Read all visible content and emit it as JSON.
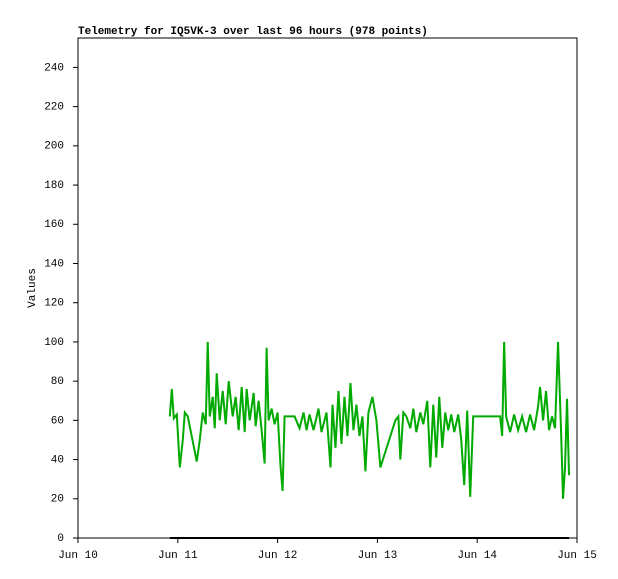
{
  "chart_data": {
    "type": "line",
    "title": "Telemetry for IQ5VK-3 over last 96 hours (978 points)",
    "y_label": "Values",
    "xlim": [
      0,
      5
    ],
    "xticks": [
      {
        "value": 0,
        "label": "Jun 10"
      },
      {
        "value": 1,
        "label": "Jun 11"
      },
      {
        "value": 2,
        "label": "Jun 12"
      },
      {
        "value": 3,
        "label": "Jun 13"
      },
      {
        "value": 4,
        "label": "Jun 14"
      },
      {
        "value": 5,
        "label": "Jun 15"
      }
    ],
    "ylim": [
      0,
      255
    ],
    "yticks": [
      0,
      20,
      40,
      60,
      80,
      100,
      120,
      140,
      160,
      180,
      200,
      220,
      240
    ],
    "grid": false,
    "series": [
      {
        "color": "#00aa00",
        "x": [
          0.92,
          0.94,
          0.96,
          0.99,
          1.02,
          1.05,
          1.07,
          1.1,
          1.19,
          1.22,
          1.25,
          1.28,
          1.3,
          1.32,
          1.35,
          1.37,
          1.39,
          1.42,
          1.45,
          1.48,
          1.51,
          1.55,
          1.58,
          1.61,
          1.64,
          1.67,
          1.69,
          1.72,
          1.76,
          1.78,
          1.81,
          1.84,
          1.87,
          1.89,
          1.91,
          1.94,
          1.97,
          2.0,
          2.03,
          2.05,
          2.07,
          2.17,
          2.22,
          2.26,
          2.29,
          2.32,
          2.36,
          2.41,
          2.44,
          2.49,
          2.53,
          2.55,
          2.58,
          2.61,
          2.64,
          2.67,
          2.7,
          2.73,
          2.76,
          2.79,
          2.82,
          2.85,
          2.88,
          2.91,
          2.95,
          2.99,
          3.03,
          3.18,
          3.21,
          3.23,
          3.26,
          3.29,
          3.33,
          3.36,
          3.39,
          3.43,
          3.46,
          3.5,
          3.53,
          3.56,
          3.59,
          3.62,
          3.65,
          3.68,
          3.71,
          3.74,
          3.77,
          3.81,
          3.84,
          3.87,
          3.9,
          3.93,
          3.96,
          4.23,
          4.25,
          4.27,
          4.29,
          4.33,
          4.37,
          4.41,
          4.45,
          4.49,
          4.53,
          4.57,
          4.61,
          4.63,
          4.66,
          4.69,
          4.72,
          4.75,
          4.78,
          4.81,
          4.84,
          4.86,
          4.88,
          4.9,
          4.92
        ],
        "values": [
          62,
          76,
          61,
          63,
          36,
          50,
          64,
          62,
          39,
          50,
          64,
          58,
          100,
          62,
          72,
          56,
          84,
          60,
          75,
          58,
          80,
          62,
          72,
          55,
          77,
          54,
          76,
          60,
          74,
          57,
          70,
          55,
          38,
          97,
          60,
          66,
          58,
          64,
          36,
          24,
          62,
          62,
          56,
          64,
          55,
          63,
          55,
          66,
          54,
          64,
          36,
          68,
          46,
          75,
          48,
          72,
          52,
          79,
          55,
          68,
          52,
          62,
          34,
          64,
          72,
          60,
          36,
          60,
          62,
          40,
          64,
          62,
          56,
          66,
          54,
          64,
          58,
          70,
          36,
          68,
          41,
          72,
          46,
          64,
          55,
          63,
          54,
          63,
          50,
          27,
          65,
          21,
          62,
          62,
          52,
          100,
          62,
          54,
          63,
          55,
          62,
          54,
          63,
          55,
          67,
          77,
          60,
          75,
          55,
          62,
          56,
          100,
          55,
          20,
          36,
          71,
          32
        ]
      },
      {
        "color": "#000000",
        "x": [
          0.92,
          4.92
        ],
        "values": [
          0,
          0
        ]
      }
    ]
  }
}
